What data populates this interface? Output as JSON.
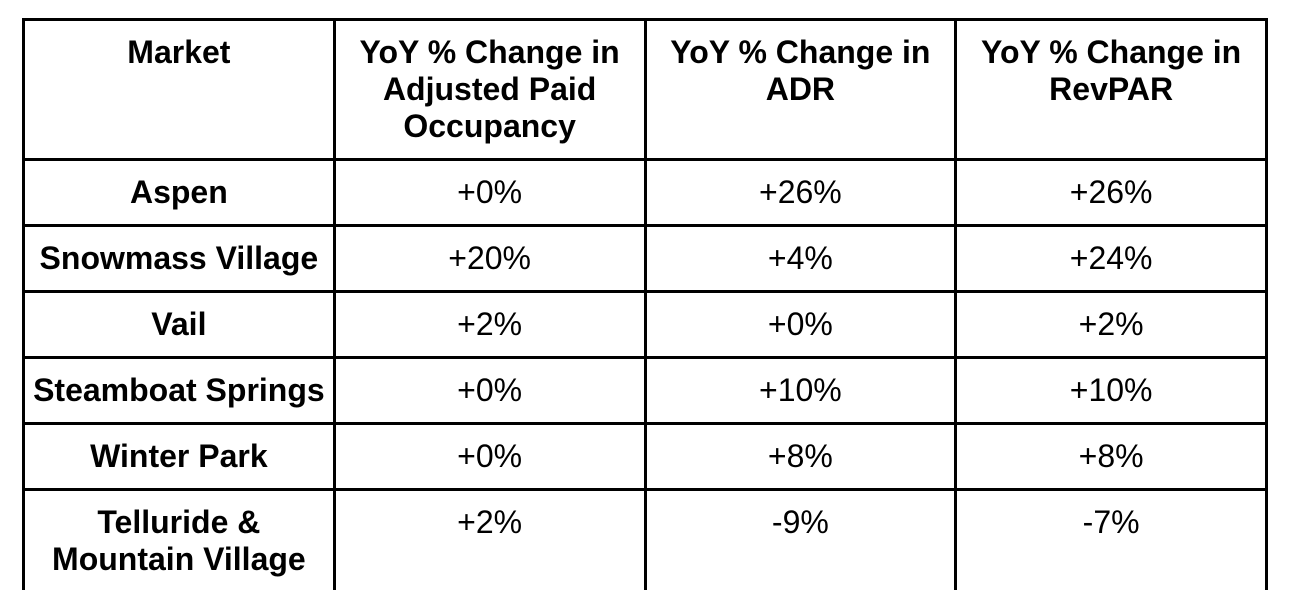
{
  "style": {
    "border_color": "#000000",
    "text_color": "#000000",
    "background_color": "#ffffff"
  },
  "chart_data": {
    "type": "table",
    "title": "",
    "columns": [
      "Market",
      "YoY % Change in Adjusted Paid Occupancy",
      "YoY % Change in ADR",
      "YoY % Change in RevPAR"
    ],
    "rows": [
      {
        "market": "Aspen",
        "adjusted_paid_occupancy": "+0%",
        "adr": "+26%",
        "revpar": "+26%"
      },
      {
        "market": "Snowmass Village",
        "adjusted_paid_occupancy": "+20%",
        "adr": "+4%",
        "revpar": "+24%"
      },
      {
        "market": "Vail",
        "adjusted_paid_occupancy": "+2%",
        "adr": "+0%",
        "revpar": "+2%"
      },
      {
        "market": "Steamboat Springs",
        "adjusted_paid_occupancy": "+0%",
        "adr": "+10%",
        "revpar": "+10%"
      },
      {
        "market": "Winter Park",
        "adjusted_paid_occupancy": "+0%",
        "adr": "+8%",
        "revpar": "+8%"
      },
      {
        "market": "Telluride & Mountain Village",
        "adjusted_paid_occupancy": "+2%",
        "adr": "-9%",
        "revpar": "-7%"
      }
    ]
  },
  "table": {
    "headers": [
      "Market",
      "YoY % Change in\nAdjusted Paid\nOccupancy",
      "YoY % Change in\nADR",
      "YoY % Change in\nRevPAR"
    ],
    "rows": [
      {
        "market": "Aspen",
        "occupancy": "+0%",
        "adr": "+26%",
        "revpar": "+26%"
      },
      {
        "market": "Snowmass Village",
        "occupancy": "+20%",
        "adr": "+4%",
        "revpar": "+24%"
      },
      {
        "market": "Vail",
        "occupancy": "+2%",
        "adr": "+0%",
        "revpar": "+2%"
      },
      {
        "market": "Steamboat Springs",
        "occupancy": "+0%",
        "adr": "+10%",
        "revpar": "+10%"
      },
      {
        "market": "Winter Park",
        "occupancy": "+0%",
        "adr": "+8%",
        "revpar": "+8%"
      },
      {
        "market": "Telluride &\nMountain Village",
        "occupancy": "+2%",
        "adr": "-9%",
        "revpar": "-7%"
      }
    ]
  }
}
